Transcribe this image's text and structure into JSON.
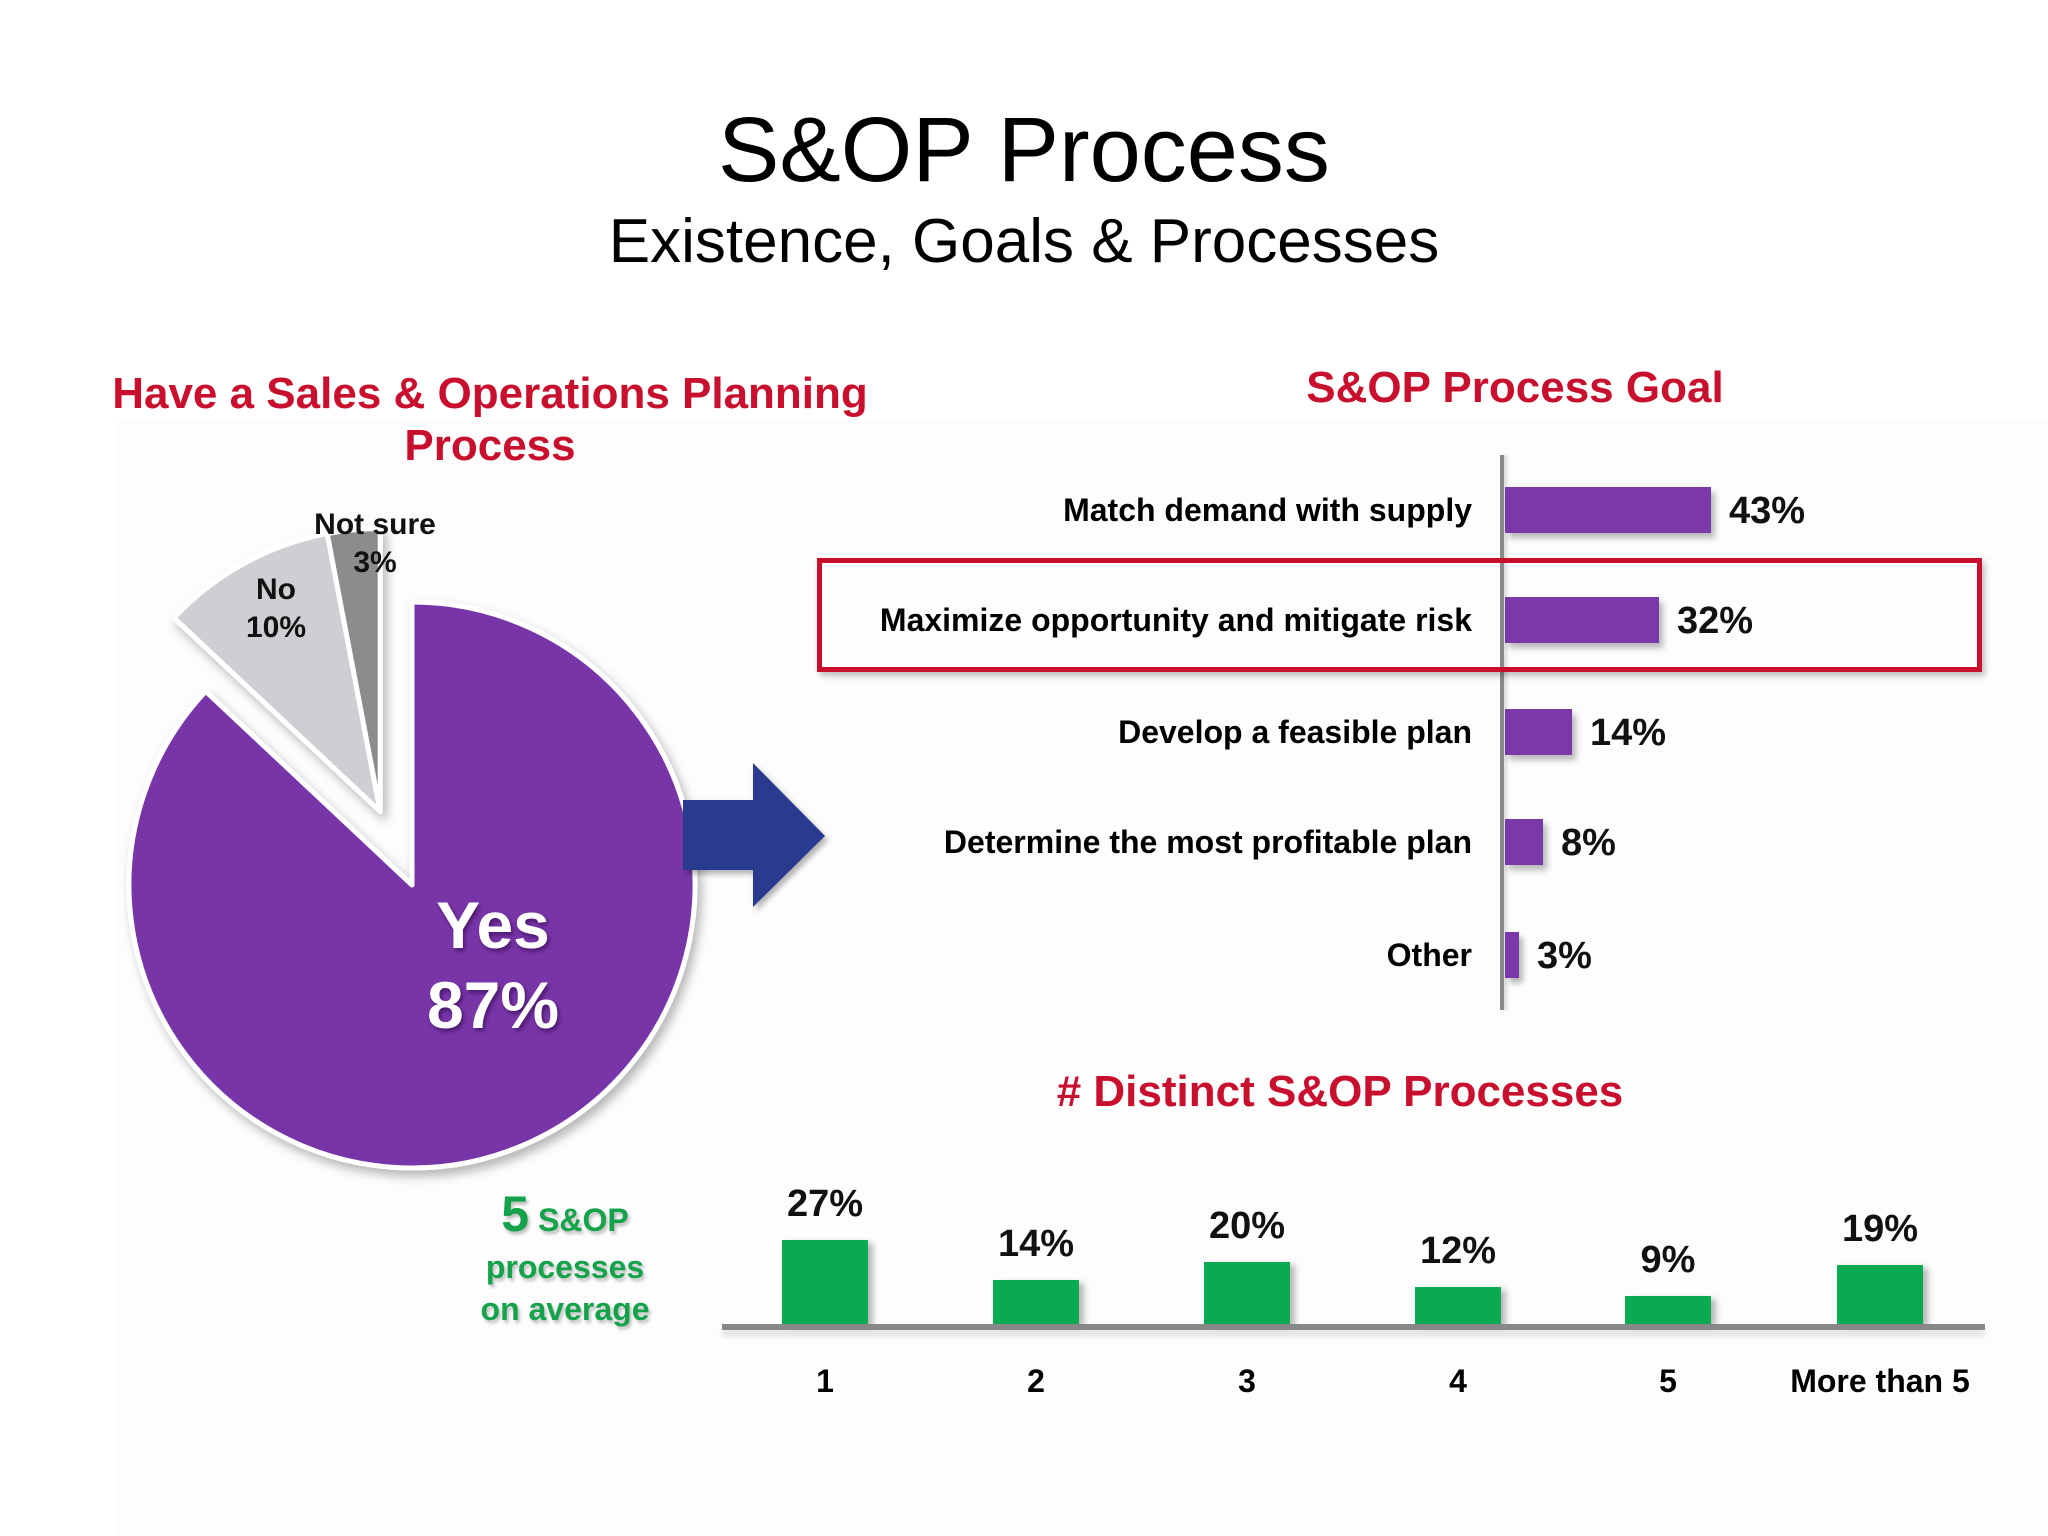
{
  "slide": {
    "title": "S&OP Process",
    "subtitle": "Existence, Goals & Processes"
  },
  "colors": {
    "heading_red": "#c8102e",
    "purple": "#7a38a8",
    "yes_slice": "#7834a8",
    "no_slice": "#cfcfd3",
    "not_sure_slice": "#8c8c8c",
    "green": "#0aaa52",
    "arrow_blue": "#2c3a8f",
    "axis_gray": "#888888"
  },
  "pie": {
    "title_line1": "Have a Sales & Operations Planning",
    "title_line2": "Process",
    "slices": [
      {
        "label": "Yes",
        "value_label": "87%",
        "value": 87
      },
      {
        "label": "No",
        "value_label": "10%",
        "value": 10
      },
      {
        "label": "Not sure",
        "value_label": "3%",
        "value": 3
      }
    ]
  },
  "goal": {
    "title": "S&OP Process Goal",
    "highlighted_index": 1,
    "items": [
      {
        "label": "Match demand with supply",
        "value": 43,
        "value_label": "43%"
      },
      {
        "label": "Maximize opportunity and mitigate risk",
        "value": 32,
        "value_label": "32%"
      },
      {
        "label": "Develop a feasible plan",
        "value": 14,
        "value_label": "14%"
      },
      {
        "label": "Determine the most profitable plan",
        "value": 8,
        "value_label": "8%"
      },
      {
        "label": "Other",
        "value": 3,
        "value_label": "3%"
      }
    ]
  },
  "distinct": {
    "title": "# Distinct S&OP Processes",
    "note_number": "5",
    "note_line1_rest": "S&OP",
    "note_line2": "processes",
    "note_line3": "on average",
    "items": [
      {
        "category": "1",
        "value": 27,
        "value_label": "27%"
      },
      {
        "category": "2",
        "value": 14,
        "value_label": "14%"
      },
      {
        "category": "3",
        "value": 20,
        "value_label": "20%"
      },
      {
        "category": "4",
        "value": 12,
        "value_label": "12%"
      },
      {
        "category": "5",
        "value": 9,
        "value_label": "9%"
      },
      {
        "category": "More than 5",
        "value": 19,
        "value_label": "19%"
      }
    ]
  },
  "chart_data": [
    {
      "type": "pie",
      "title": "Have a Sales & Operations Planning Process",
      "categories": [
        "Yes",
        "No",
        "Not sure"
      ],
      "values": [
        87,
        10,
        3
      ],
      "unit": "%",
      "exploded": [
        "No",
        "Not sure"
      ]
    },
    {
      "type": "bar",
      "orientation": "horizontal",
      "title": "S&OP Process Goal",
      "categories": [
        "Match demand with supply",
        "Maximize opportunity and mitigate risk",
        "Develop a feasible plan",
        "Determine the most profitable plan",
        "Other"
      ],
      "values": [
        43,
        32,
        14,
        8,
        3
      ],
      "unit": "%",
      "highlighted": "Maximize opportunity and mitigate risk",
      "xlabel": "",
      "ylabel": "",
      "grid": false
    },
    {
      "type": "bar",
      "orientation": "vertical",
      "title": "# Distinct S&OP Processes",
      "categories": [
        "1",
        "2",
        "3",
        "4",
        "5",
        "More than 5"
      ],
      "values": [
        27,
        14,
        20,
        12,
        9,
        19
      ],
      "unit": "%",
      "annotation": "5 S&OP processes on average",
      "xlabel": "",
      "ylabel": "",
      "grid": false
    }
  ]
}
